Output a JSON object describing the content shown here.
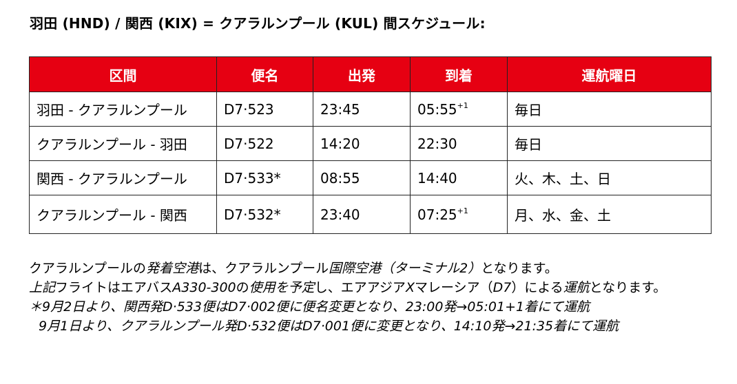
{
  "title": "羽田 (HND) / 関西 (KIX) = クアラルンプール (KUL) 間スケジュール:",
  "table": {
    "headers": [
      "区間",
      "便名",
      "出発",
      "到着",
      "運航曜日"
    ],
    "rows": [
      {
        "route": "羽田 - クアラルンプール",
        "flight": "D7·523",
        "dep": "23:45",
        "arr": "05:55",
        "arr_sup": "+1",
        "days": "毎日"
      },
      {
        "route": "クアラルンプール - 羽田",
        "flight": "D7·522",
        "dep": "14:20",
        "arr": "22:30",
        "arr_sup": "",
        "days": "毎日"
      },
      {
        "route": "関西 - クアラルンプール",
        "flight": "D7·533*",
        "dep": "08:55",
        "arr": "14:40",
        "arr_sup": "",
        "days": "火、木、土、日"
      },
      {
        "route": "クアラルンプール - 関西",
        "flight": "D7·532*",
        "dep": "23:40",
        "arr": "07:25",
        "arr_sup": "+1",
        "days": "月、水、金、土"
      }
    ]
  },
  "notes": {
    "line1": {
      "a": "クアラルンプールの",
      "b": "発着空港",
      "c": "は、クアラルンプール",
      "d": "国際空港（ターミナル2）",
      "e": "となります。"
    },
    "line2": {
      "a": "上記",
      "b": "フライトはエアバス",
      "c": "A330-300",
      "d": "の",
      "e": "使用を予定",
      "f": "し、エアアジア",
      "g": "X",
      "h": "マレーシア（",
      "i": "D7",
      "j": "）による",
      "k": "運航",
      "l": "となります。"
    },
    "footnote1": "＊9月2日より、関西発D·533便はD7·002便に便名変更となり、23:00発→05:01+1着にて運航",
    "footnote2": "9月1日より、クアラルンプール発D·532便はD7·001便に変更となり、14:10発→21:35着にて運航"
  }
}
